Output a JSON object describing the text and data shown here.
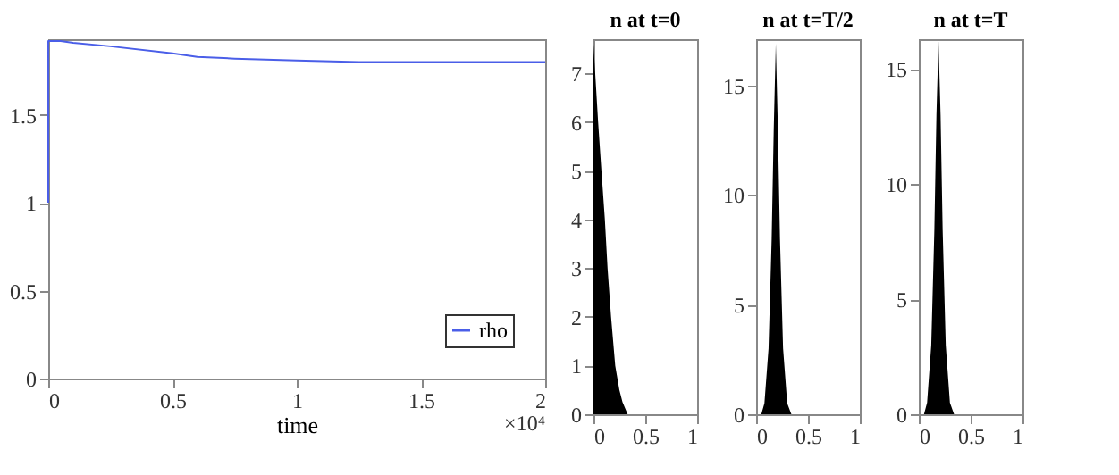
{
  "chart_data": [
    {
      "type": "line",
      "xlabel": "time",
      "x": [
        0,
        0.0001,
        0.01,
        0.05,
        0.1,
        0.25,
        0.5,
        0.6,
        0.75,
        1,
        1.25,
        1.5,
        1.75,
        2
      ],
      "series": [
        {
          "name": "rho",
          "color": "#4a5ee8",
          "values": [
            1.0,
            1.92,
            1.92,
            1.92,
            1.91,
            1.89,
            1.85,
            1.83,
            1.82,
            1.81,
            1.8,
            1.8,
            1.8,
            1.8
          ]
        }
      ],
      "xlim": [
        0,
        2
      ],
      "xticks": [
        0,
        0.5,
        1,
        1.5,
        2
      ],
      "ylim": [
        0,
        1.93
      ],
      "yticks": [
        0,
        0.5,
        1,
        1.5
      ],
      "annotations": [
        "×10⁴"
      ],
      "legend": "bottom right",
      "grid": false
    },
    {
      "type": "area",
      "title": "n at t=0",
      "x": [
        0,
        0.045,
        0.077,
        0.11,
        0.136,
        0.17,
        0.21,
        0.25,
        0.28,
        0.33,
        1
      ],
      "series": [
        {
          "color": "#000000",
          "values": [
            7.6,
            6,
            5,
            4,
            3,
            2,
            1,
            0.5,
            0.25,
            0,
            0
          ]
        }
      ],
      "xlim": [
        0,
        1
      ],
      "xticks": [
        0,
        0.5,
        1
      ],
      "ylim": [
        0,
        7.7
      ],
      "yticks": [
        0,
        1,
        2,
        3,
        4,
        5,
        6,
        7
      ],
      "grid": false
    },
    {
      "type": "area",
      "title": "n at t=T/2",
      "x": [
        0,
        0.05,
        0.08,
        0.12,
        0.15,
        0.17,
        0.19,
        0.21,
        0.23,
        0.26,
        0.3,
        0.34,
        1
      ],
      "series": [
        {
          "color": "#000000",
          "values": [
            0,
            0,
            0.5,
            3,
            8,
            13,
            16.9,
            13,
            8,
            3,
            0.5,
            0,
            0
          ]
        }
      ],
      "xlim": [
        0,
        1
      ],
      "xticks": [
        0,
        0.5,
        1
      ],
      "ylim": [
        0,
        17.1
      ],
      "yticks": [
        0,
        5,
        10,
        15
      ],
      "grid": false
    },
    {
      "type": "area",
      "title": "n at t=T",
      "x": [
        0,
        0.05,
        0.08,
        0.12,
        0.15,
        0.17,
        0.19,
        0.21,
        0.23,
        0.26,
        0.3,
        0.34,
        1
      ],
      "series": [
        {
          "color": "#000000",
          "values": [
            0,
            0,
            0.5,
            3,
            8,
            13,
            16.2,
            13,
            8,
            3,
            0.5,
            0,
            0
          ]
        }
      ],
      "xlim": [
        0,
        1
      ],
      "xticks": [
        0,
        0.5,
        1
      ],
      "ylim": [
        0,
        16.3
      ],
      "yticks": [
        0,
        5,
        10,
        15
      ],
      "grid": false
    }
  ]
}
